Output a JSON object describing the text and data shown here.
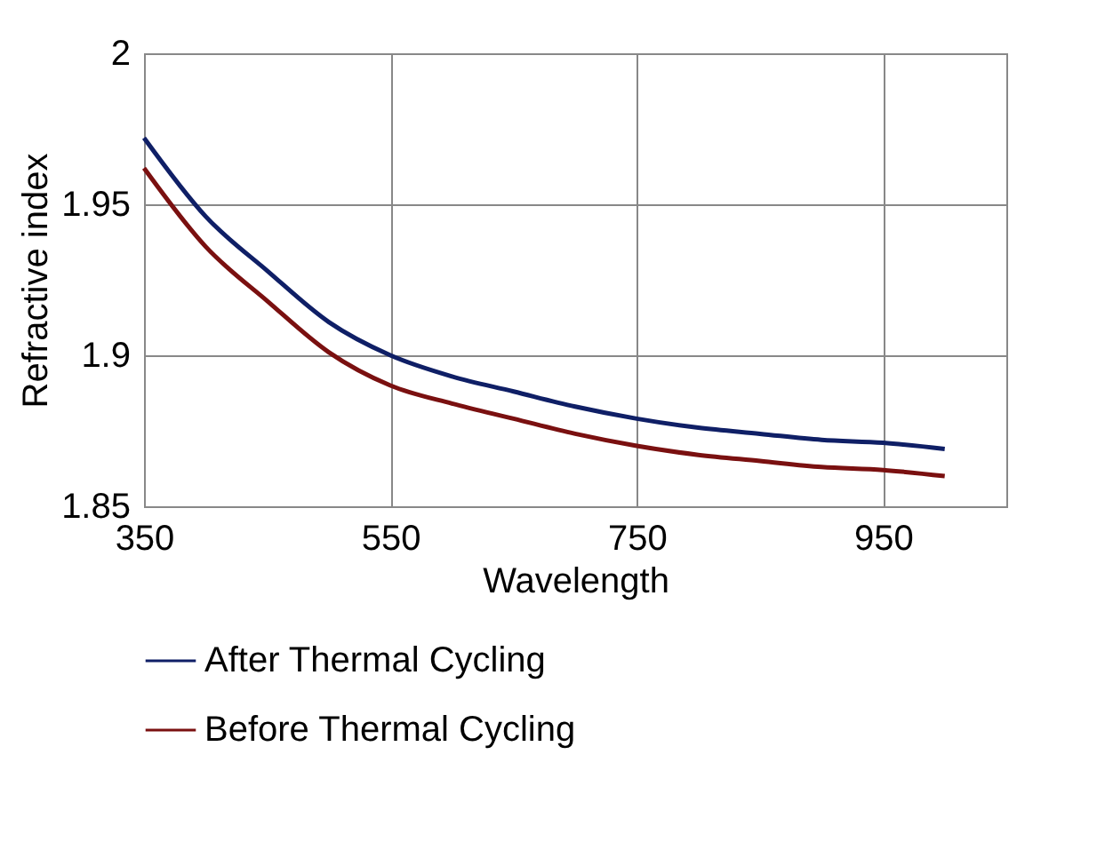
{
  "chart_data": {
    "type": "line",
    "xlabel": "Wavelength",
    "ylabel": "Refractive index",
    "x": [
      350,
      400,
      450,
      500,
      550,
      600,
      650,
      700,
      750,
      800,
      850,
      900,
      950,
      1000
    ],
    "series": [
      {
        "name": "After Thermal Cycling",
        "color": "#0f1f66",
        "values": [
          1.972,
          1.946,
          1.928,
          1.911,
          1.9,
          1.893,
          1.888,
          1.883,
          1.879,
          1.876,
          1.874,
          1.872,
          1.871,
          1.869
        ]
      },
      {
        "name": "Before Thermal Cycling",
        "color": "#7a1010",
        "values": [
          1.962,
          1.936,
          1.918,
          1.901,
          1.89,
          1.884,
          1.879,
          1.874,
          1.87,
          1.867,
          1.865,
          1.863,
          1.862,
          1.86
        ]
      }
    ],
    "xlim": [
      350,
      1050
    ],
    "xticks": [
      350,
      550,
      750,
      950
    ],
    "ylim": [
      1.85,
      2
    ],
    "yticks": [
      1.85,
      1.9,
      1.95,
      2
    ],
    "grid": true,
    "legend": "bottom",
    "marker": "none",
    "line_style": "solid"
  }
}
